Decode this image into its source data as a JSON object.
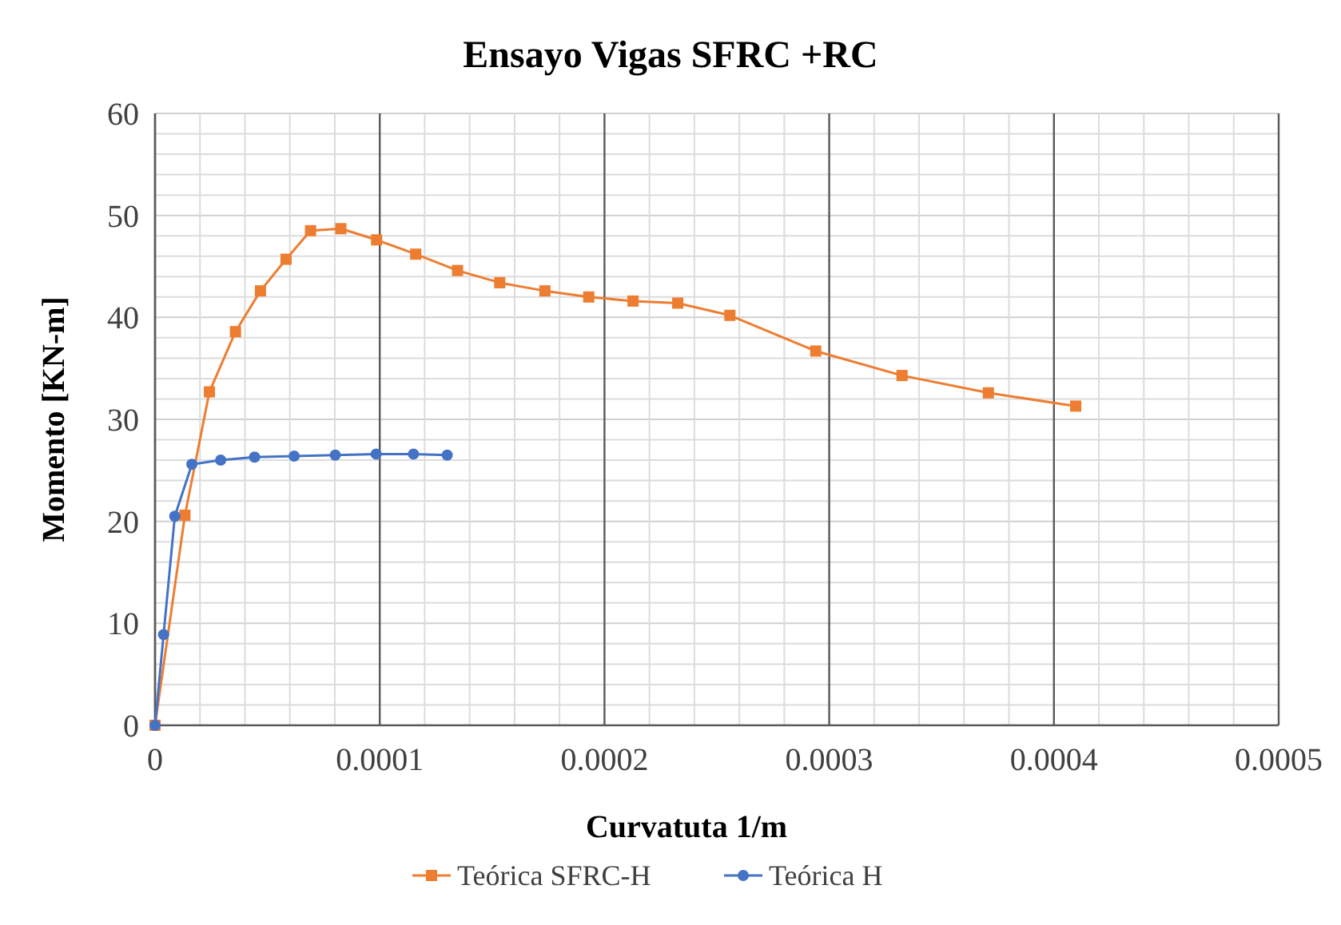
{
  "chart_data": {
    "type": "line",
    "title": "Ensayo Vigas SFRC +RC",
    "xlabel": "Curvatuta 1/m",
    "ylabel": "Momento [KN-m]",
    "xlim": [
      0,
      0.0005
    ],
    "xticks": [
      0,
      0.0001,
      0.0002,
      0.0003,
      0.0004,
      0.0005
    ],
    "ylim": [
      0,
      60
    ],
    "yticks": [
      0,
      10,
      20,
      30,
      40,
      50,
      60
    ],
    "grid": true,
    "legend": "bottom",
    "line_style": "solid",
    "series": [
      {
        "name": "Teórica SFRC-H",
        "color": "#ed7d31",
        "marker": "square",
        "x": [
          0,
          1.33e-05,
          2.42e-05,
          3.58e-05,
          4.69e-05,
          5.83e-05,
          6.92e-05,
          8.27e-05,
          9.86e-05,
          0.000116,
          0.0001346,
          0.0001534,
          0.0001735,
          0.000193,
          0.0002127,
          0.0002326,
          0.0002558,
          0.000294,
          0.0003324,
          0.0003708,
          0.0004097
        ],
        "values": [
          0,
          20.6,
          32.7,
          38.6,
          42.6,
          45.7,
          48.5,
          48.7,
          47.6,
          46.2,
          44.6,
          43.4,
          42.6,
          42.0,
          41.6,
          41.4,
          40.2,
          36.7,
          34.3,
          32.6,
          31.3
        ]
      },
      {
        "name": "Teórica H",
        "color": "#4472c4",
        "marker": "circle",
        "x": [
          0,
          3.8e-06,
          8.8e-06,
          1.64e-05,
          2.92e-05,
          4.43e-05,
          6.19e-05,
          8.02e-05,
          9.84e-05,
          0.000115,
          0.00013
        ],
        "values": [
          0,
          8.9,
          20.5,
          25.6,
          26.0,
          26.3,
          26.4,
          26.5,
          26.6,
          26.6,
          26.5
        ]
      }
    ]
  }
}
